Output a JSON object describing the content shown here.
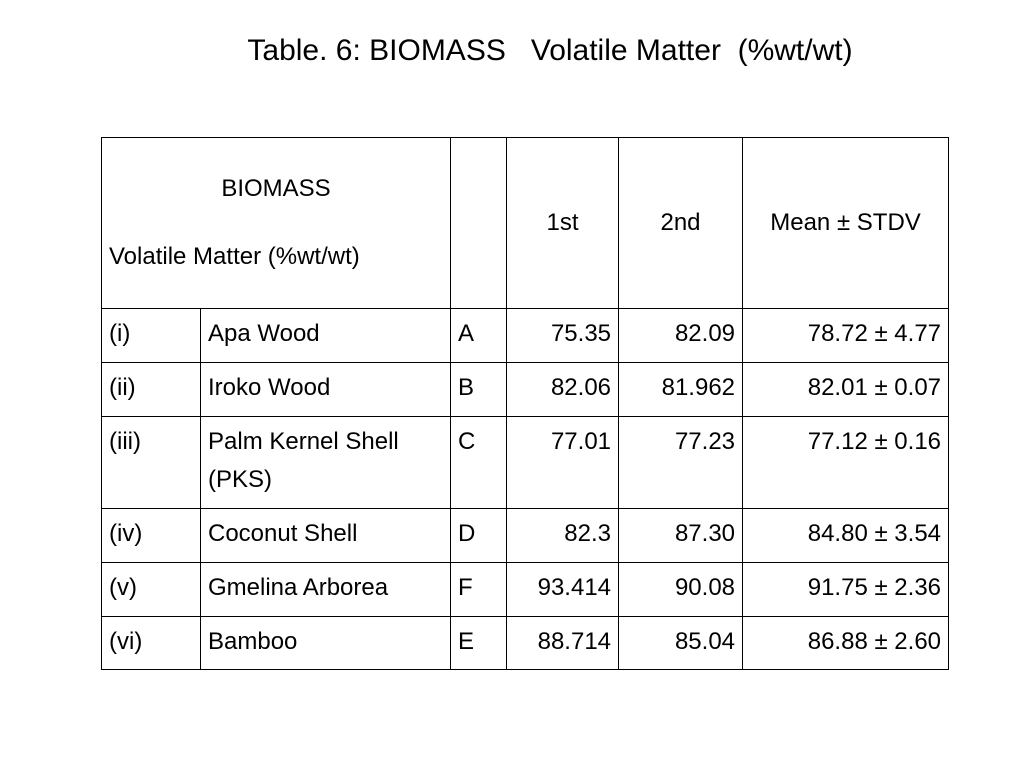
{
  "title": "Table. 6: BIOMASS   Volatile Matter  (%wt/wt)",
  "table": {
    "header": {
      "biomass": "BIOMASS",
      "quantity": "Volatile Matter  (%wt/wt)",
      "columns": [
        "1st",
        "2nd",
        "Mean ± STDV"
      ]
    },
    "rows": [
      [
        "(i)",
        "Apa Wood",
        "A",
        "75.35",
        "82.09",
        "78.72  ± 4.77"
      ],
      [
        "(ii)",
        "Iroko Wood",
        "B",
        "82.06",
        "81.962",
        "82.01 ± 0.07"
      ],
      [
        "(iii)",
        "Palm Kernel Shell\n(PKS)",
        "C",
        "77.01",
        "77.23",
        "77.12 ± 0.16"
      ],
      [
        "(iv)",
        "Coconut Shell",
        "D",
        "82.3",
        "87.30",
        "84.80 ± 3.54"
      ],
      [
        "(v)",
        "Gmelina Arborea",
        "F",
        "93.414",
        "90.08",
        "91.75 ± 2.36"
      ],
      [
        "(vi)",
        "Bamboo",
        "E",
        "88.714",
        "85.04",
        "86.88 ± 2.60"
      ]
    ]
  }
}
